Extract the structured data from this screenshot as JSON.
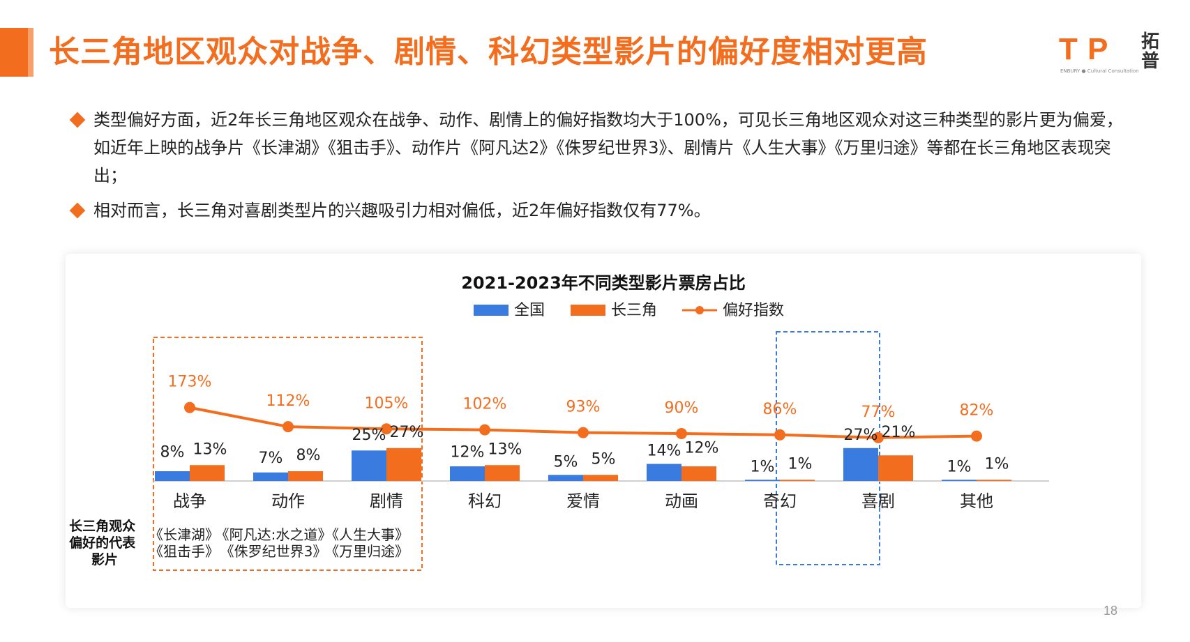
{
  "header": {
    "title": "长三角地区观众对战争、剧情、科幻类型影片的偏好度相对更高",
    "logo_text": "T P",
    "logo_cn": "拓普",
    "logo_sub": "ENBURY ● Cultural Consultation"
  },
  "bullets": [
    "类型偏好方面，近2年长三角地区观众在战争、动作、剧情上的偏好指数均大于100%，可见长三角地区观众对这三种类型的影片更为偏爱，如近年上映的战争片《长津湖》《狙击手》、动作片《阿凡达2》《侏罗纪世界3》、剧情片《人生大事》《万里归途》等都在长三角地区表现突出；",
    "相对而言，长三角对喜剧类型片的兴趣吸引力相对偏低，近2年偏好指数仅有77%。"
  ],
  "colors": {
    "accent": "#f36d1f",
    "national": "#3a7be0",
    "yrd": "#f36d1f",
    "highlight_box_orange": "#f36d1f",
    "highlight_box_blue": "#3a7be0"
  },
  "chart_data": {
    "type": "bar",
    "title": "2021-2023年不同类型影片票房占比",
    "categories": [
      "战争",
      "动作",
      "剧情",
      "科幻",
      "爱情",
      "动画",
      "奇幻",
      "喜剧",
      "其他"
    ],
    "series": [
      {
        "name": "全国",
        "type": "bar",
        "values": [
          8,
          7,
          25,
          12,
          5,
          14,
          1,
          27,
          1
        ],
        "labels": [
          "8%",
          "7%",
          "25%",
          "12%",
          "5%",
          "14%",
          "1%",
          "27%",
          "1%"
        ]
      },
      {
        "name": "长三角",
        "type": "bar",
        "values": [
          13,
          8,
          27,
          13,
          5,
          12,
          1,
          21,
          1
        ],
        "labels": [
          "13%",
          "8%",
          "27%",
          "13%",
          "5%",
          "12%",
          "1%",
          "21%",
          "1%"
        ]
      },
      {
        "name": "偏好指数",
        "type": "line",
        "values": [
          173,
          112,
          105,
          102,
          93,
          90,
          86,
          77,
          82
        ],
        "labels": [
          "173%",
          "112%",
          "105%",
          "102%",
          "93%",
          "90%",
          "86%",
          "77%",
          "82%"
        ]
      }
    ],
    "legend_position": "top-center",
    "row_label": "长三角观众偏好的代表影片",
    "representative_films": [
      [
        "《长津湖》",
        "《狙击手》"
      ],
      [
        "《阿凡达:水之道》",
        "《侏罗纪世界3》"
      ],
      [
        "《人生大事》",
        "《万里归途》"
      ]
    ],
    "highlighted_categories": [
      "战争",
      "动作",
      "剧情",
      "喜剧"
    ]
  },
  "footer": {
    "page_number": "18"
  }
}
